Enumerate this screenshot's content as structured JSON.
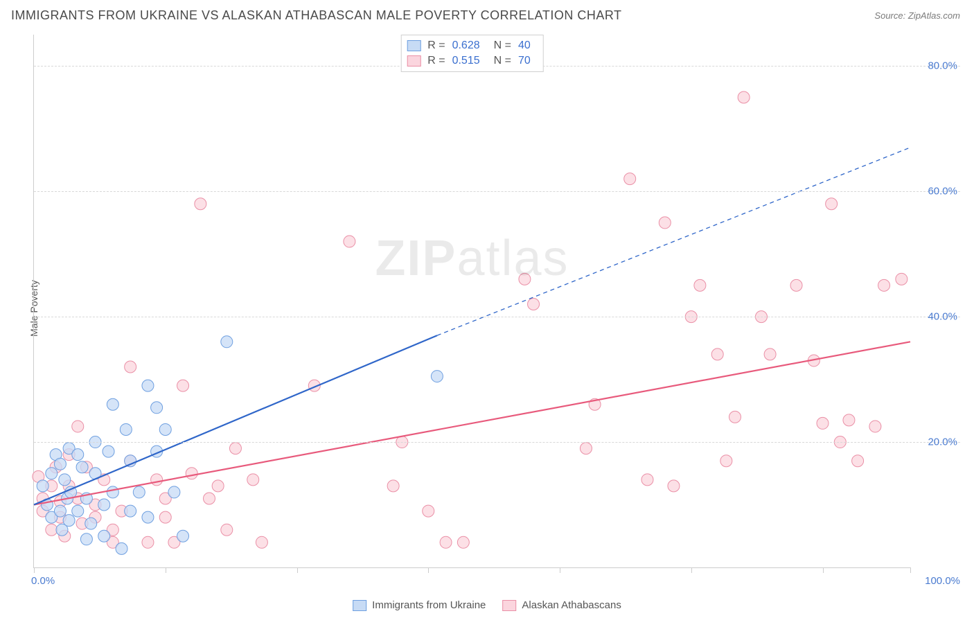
{
  "header": {
    "title": "IMMIGRANTS FROM UKRAINE VS ALASKAN ATHABASCAN MALE POVERTY CORRELATION CHART",
    "source_label": "Source:",
    "source_value": "ZipAtlas.com"
  },
  "watermark": {
    "prefix": "ZIP",
    "suffix": "atlas"
  },
  "chart": {
    "type": "scatter",
    "ylabel": "Male Poverty",
    "xlim": [
      0,
      100
    ],
    "ylim": [
      0,
      85
    ],
    "xtick_positions": [
      0,
      15,
      30,
      45,
      60,
      75,
      90,
      100
    ],
    "ytick_labels": [
      {
        "value": 20,
        "text": "20.0%"
      },
      {
        "value": 40,
        "text": "40.0%"
      },
      {
        "value": 60,
        "text": "60.0%"
      },
      {
        "value": 80,
        "text": "80.0%"
      }
    ],
    "xmin_label": "0.0%",
    "xmax_label": "100.0%",
    "grid_color": "#d8d8d8",
    "axis_color": "#cccccc",
    "background_color": "#ffffff",
    "marker_radius": 8.5,
    "marker_stroke_width": 1,
    "line_width": 2.2,
    "tick_label_color": "#4a7bd0",
    "series": [
      {
        "name": "Immigrants from Ukraine",
        "fill": "#c7dbf5",
        "stroke": "#6e9fe0",
        "line_color": "#2f66c9",
        "trend_x_range": [
          0,
          46
        ],
        "trend_dash_extend_to": 100,
        "trend_intercept": 10,
        "trend_end_y": 37,
        "trend_extrapolate_end_y": 67,
        "stats": {
          "R": "0.628",
          "N": "40"
        },
        "points": [
          [
            1,
            13
          ],
          [
            1.5,
            10
          ],
          [
            2,
            15
          ],
          [
            2,
            8
          ],
          [
            2.5,
            18
          ],
          [
            3,
            9
          ],
          [
            3,
            16.5
          ],
          [
            3.2,
            6
          ],
          [
            3.5,
            14
          ],
          [
            3.8,
            11
          ],
          [
            4,
            19
          ],
          [
            4,
            7.5
          ],
          [
            4.2,
            12
          ],
          [
            5,
            18
          ],
          [
            5,
            9
          ],
          [
            5.5,
            16
          ],
          [
            6,
            11
          ],
          [
            6,
            4.5
          ],
          [
            6.5,
            7
          ],
          [
            7,
            20
          ],
          [
            7,
            15
          ],
          [
            8,
            10
          ],
          [
            8,
            5
          ],
          [
            8.5,
            18.5
          ],
          [
            9,
            12
          ],
          [
            9,
            26
          ],
          [
            10,
            3
          ],
          [
            10.5,
            22
          ],
          [
            11,
            9
          ],
          [
            11,
            17
          ],
          [
            12,
            12
          ],
          [
            13,
            29
          ],
          [
            13,
            8
          ],
          [
            14,
            25.5
          ],
          [
            14,
            18.5
          ],
          [
            15,
            22
          ],
          [
            16,
            12
          ],
          [
            17,
            5
          ],
          [
            22,
            36
          ],
          [
            46,
            30.5
          ]
        ]
      },
      {
        "name": "Alaskan Athabascans",
        "fill": "#fbd5de",
        "stroke": "#ea8fa6",
        "line_color": "#e85a7c",
        "trend_x_range": [
          0,
          100
        ],
        "trend_intercept": 10,
        "trend_end_y": 36,
        "stats": {
          "R": "0.515",
          "N": "70"
        },
        "points": [
          [
            0.5,
            14.5
          ],
          [
            1,
            9
          ],
          [
            1,
            11
          ],
          [
            2,
            6
          ],
          [
            2,
            13
          ],
          [
            2.5,
            16
          ],
          [
            3,
            8
          ],
          [
            3,
            10.5
          ],
          [
            3.5,
            5
          ],
          [
            4,
            13
          ],
          [
            4,
            18
          ],
          [
            5,
            11
          ],
          [
            5,
            22.5
          ],
          [
            5.5,
            7
          ],
          [
            6,
            16
          ],
          [
            7,
            10
          ],
          [
            7,
            8
          ],
          [
            8,
            14
          ],
          [
            9,
            6
          ],
          [
            9,
            4
          ],
          [
            10,
            9
          ],
          [
            11,
            32
          ],
          [
            11,
            17
          ],
          [
            13,
            4
          ],
          [
            14,
            14
          ],
          [
            15,
            8
          ],
          [
            15,
            11
          ],
          [
            16,
            4
          ],
          [
            17,
            29
          ],
          [
            18,
            15
          ],
          [
            19,
            58
          ],
          [
            20,
            11
          ],
          [
            21,
            13
          ],
          [
            22,
            6
          ],
          [
            23,
            19
          ],
          [
            25,
            14
          ],
          [
            26,
            4
          ],
          [
            32,
            29
          ],
          [
            36,
            52
          ],
          [
            41,
            13
          ],
          [
            42,
            20
          ],
          [
            45,
            9
          ],
          [
            47,
            4
          ],
          [
            49,
            4
          ],
          [
            56,
            46
          ],
          [
            57,
            42
          ],
          [
            63,
            19
          ],
          [
            64,
            26
          ],
          [
            68,
            62
          ],
          [
            70,
            14
          ],
          [
            72,
            55
          ],
          [
            73,
            13
          ],
          [
            75,
            40
          ],
          [
            76,
            45
          ],
          [
            78,
            34
          ],
          [
            79,
            17
          ],
          [
            80,
            24
          ],
          [
            81,
            75
          ],
          [
            83,
            40
          ],
          [
            84,
            34
          ],
          [
            87,
            45
          ],
          [
            89,
            33
          ],
          [
            90,
            23
          ],
          [
            91,
            58
          ],
          [
            92,
            20
          ],
          [
            93,
            23.5
          ],
          [
            94,
            17
          ],
          [
            96,
            22.5
          ],
          [
            97,
            45
          ],
          [
            99,
            46
          ]
        ]
      }
    ]
  },
  "bottom_legend": {
    "series_a": "Immigrants from Ukraine",
    "series_b": "Alaskan Athabascans"
  },
  "stats_legend": {
    "R_label": "R =",
    "N_label": "N ="
  }
}
